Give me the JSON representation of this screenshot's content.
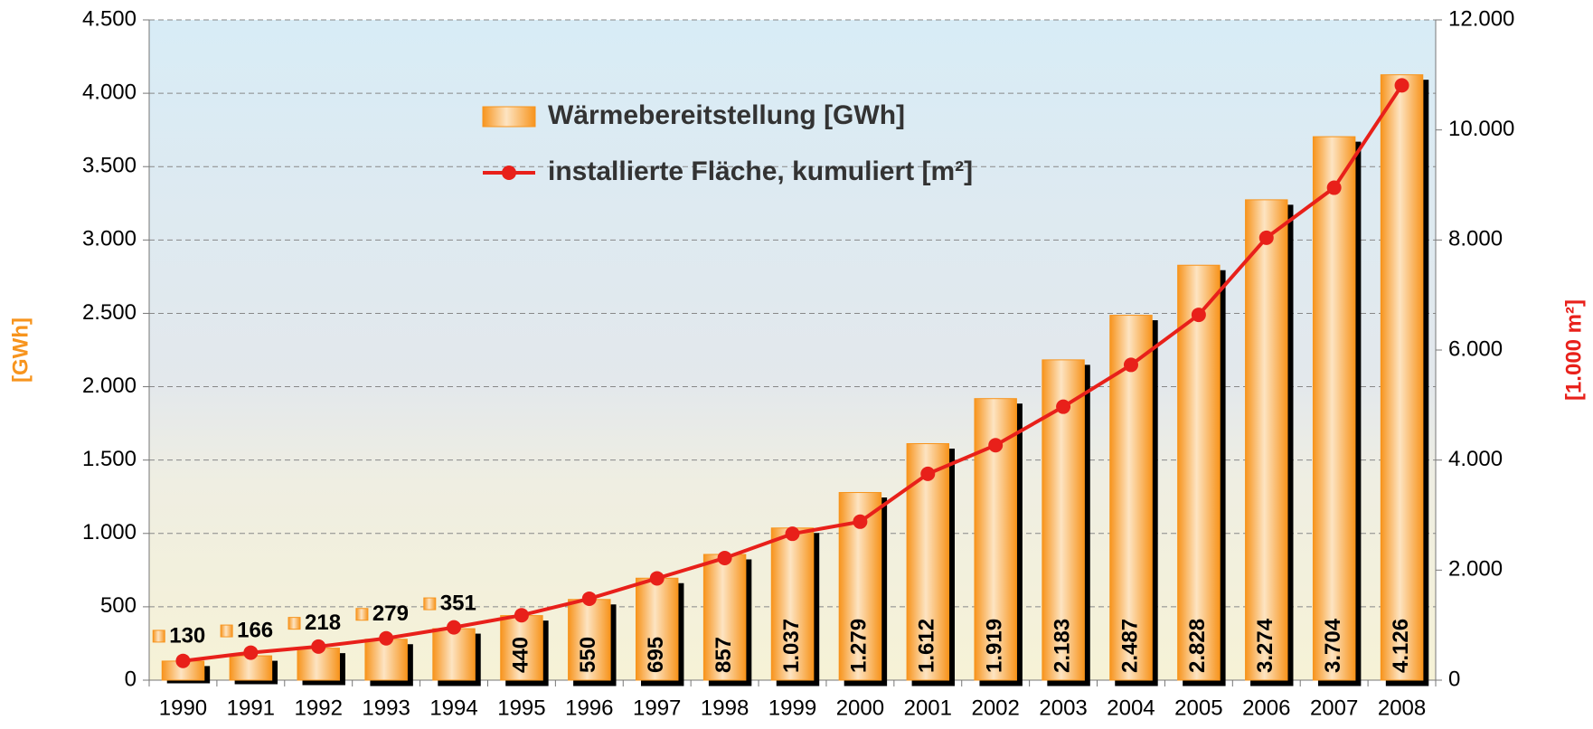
{
  "chart_data": {
    "type": "bar-line",
    "categories": [
      "1990",
      "1991",
      "1992",
      "1993",
      "1994",
      "1995",
      "1996",
      "1997",
      "1998",
      "1999",
      "2000",
      "2001",
      "2002",
      "2003",
      "2004",
      "2005",
      "2006",
      "2007",
      "2008"
    ],
    "series": [
      {
        "name": "Wärmebereitstellung [GWh]",
        "color": "#f7941d",
        "type": "bar",
        "values": [
          130,
          166,
          218,
          279,
          351,
          440,
          550,
          695,
          857,
          1037,
          1279,
          1612,
          1919,
          2183,
          2487,
          2828,
          3274,
          3704,
          4126
        ],
        "value_labels": [
          "130",
          "166",
          "218",
          "279",
          "351",
          "440",
          "550",
          "695",
          "857",
          "1.037",
          "1.279",
          "1.612",
          "1.919",
          "2.183",
          "2.487",
          "2.828",
          "3.274",
          "3.704",
          "4.126"
        ]
      },
      {
        "name": "installierte Fläche, kumuliert [m²]",
        "color": "#e8201a",
        "type": "line",
        "axis": "y2",
        "values": [
          350,
          500,
          610,
          760,
          960,
          1180,
          1480,
          1850,
          2220,
          2660,
          2880,
          3750,
          4270,
          4970,
          5730,
          6640,
          8040,
          8950,
          10810
        ]
      }
    ],
    "y_label": "[GWh]",
    "y2_label": "[1.000 m²]",
    "ylim": [
      0,
      4500
    ],
    "yticks": [
      0,
      500,
      {
        "value": 1000,
        "label": "1.000"
      },
      {
        "value": 1500,
        "label": "1.500"
      },
      {
        "value": 2000,
        "label": "2.000"
      },
      {
        "value": 2500,
        "label": "2.500"
      },
      {
        "value": 3000,
        "label": "3.000"
      },
      {
        "value": 3500,
        "label": "3.500"
      },
      {
        "value": 4000,
        "label": "4.000"
      },
      {
        "value": 4500,
        "label": "4.500"
      }
    ],
    "y2lim": [
      0,
      12000
    ],
    "y2ticks": [
      0,
      {
        "value": 2000,
        "label": "2.000"
      },
      {
        "value": 4000,
        "label": "4.000"
      },
      {
        "value": 6000,
        "label": "6.000"
      },
      {
        "value": 8000,
        "label": "8.000"
      },
      {
        "value": 10000,
        "label": "10.000"
      },
      {
        "value": 12000,
        "label": "12.000"
      }
    ],
    "grid": true
  }
}
